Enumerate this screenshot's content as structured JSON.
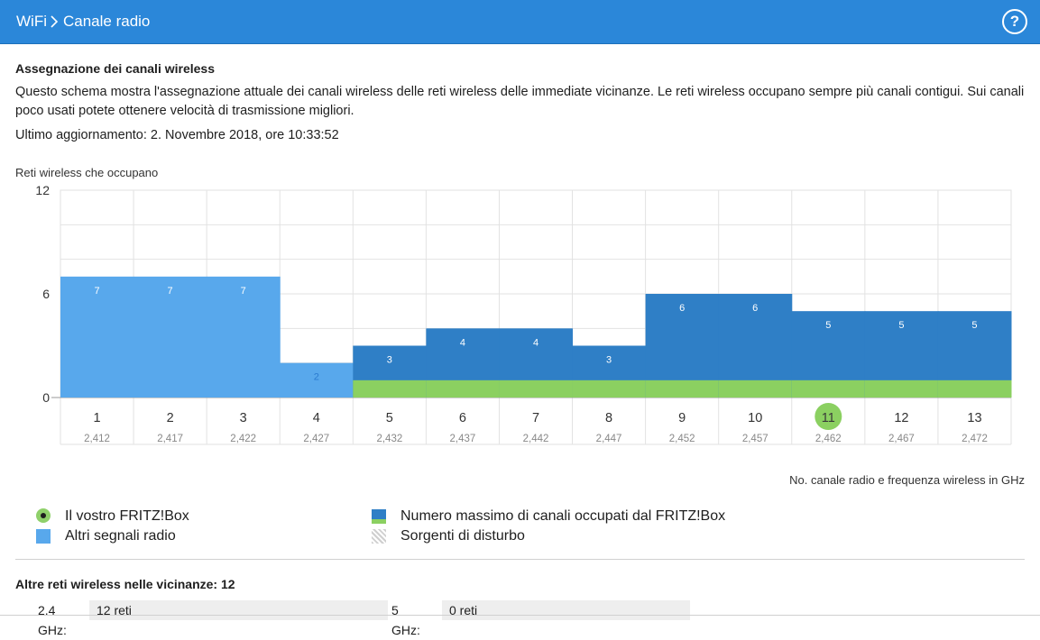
{
  "header": {
    "crumb_root": "WiFi",
    "crumb_current": "Canale radio",
    "help_label": "?"
  },
  "main": {
    "section_title": "Assegnazione dei canali wireless",
    "description": "Questo schema mostra l'assegnazione attuale dei canali wireless delle reti wireless delle immediate vicinanze. Le reti wireless occupano sempre più canali contigui. Sui canali poco usati potete ottenere velocità di trasmissione migliori.",
    "last_update": "Ultimo aggiornamento: 2. Novembre 2018, ore 10:33:52"
  },
  "chart_data": {
    "type": "bar",
    "ylabel": "Reti wireless che occupano",
    "xlabel": "No. canale radio e frequenza wireless in GHz",
    "ylim": [
      0,
      12
    ],
    "yticks": [
      "12",
      "6",
      "0"
    ],
    "categories": [
      "1",
      "2",
      "3",
      "4",
      "5",
      "6",
      "7",
      "8",
      "9",
      "10",
      "11",
      "12",
      "13"
    ],
    "frequencies": [
      "2,412",
      "2,417",
      "2,422",
      "2,427",
      "2,432",
      "2,437",
      "2,442",
      "2,447",
      "2,452",
      "2,457",
      "2,462",
      "2,467",
      "2,472"
    ],
    "values": [
      7,
      7,
      7,
      2,
      3,
      4,
      4,
      3,
      6,
      6,
      5,
      5,
      5
    ],
    "value_labels": [
      "7",
      "7",
      "7",
      "2",
      "3",
      "4",
      "4",
      "3",
      "6",
      "6",
      "5",
      "5",
      "5"
    ],
    "fritzbox_channel": "11",
    "fritzbox_occupied": [
      false,
      false,
      false,
      false,
      true,
      true,
      true,
      true,
      true,
      true,
      true,
      true,
      true
    ],
    "colors": {
      "other": "#58a8ec",
      "fritzbox": "#2f7fc6",
      "green": "#8bd061",
      "grid": "#e2e2e2"
    },
    "grid": true
  },
  "legend": {
    "fritzbox": "Il vostro FRITZ!Box",
    "other": "Altri segnali radio",
    "max_channels": "Numero massimo di canali occupati dal FRITZ!Box",
    "interference": "Sorgenti di disturbo"
  },
  "others": {
    "title": "Altre reti wireless nelle vicinanze: 12",
    "band24_label": "2.4 GHz:",
    "band24_value": "12 reti",
    "band5_label": "5 GHz:",
    "band5_value": "0 reti"
  }
}
